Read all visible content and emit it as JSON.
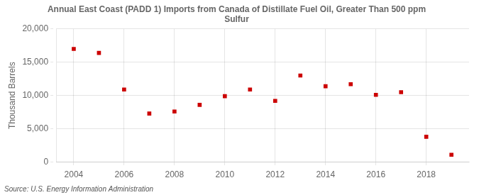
{
  "chart_data": {
    "type": "scatter",
    "title": "Annual East Coast (PADD 1) Imports from Canada of Distillate Fuel Oil, Greater Than 500 ppm\nSulfur",
    "ylabel": "Thousand Barrels",
    "annotations": [
      "Source: U.S. Energy Information Administration"
    ],
    "x": [
      2004,
      2005,
      2006,
      2007,
      2008,
      2009,
      2010,
      2011,
      2012,
      2013,
      2014,
      2015,
      2016,
      2017,
      2018,
      2019
    ],
    "values": [
      17000,
      16400,
      10900,
      7300,
      7600,
      8600,
      9900,
      10900,
      9200,
      13000,
      11400,
      11700,
      10100,
      10500,
      3800,
      1100
    ],
    "color": "#cc0000",
    "marker": "square",
    "xlim": [
      2003.3,
      2019.7
    ],
    "xticks": [
      2004,
      2006,
      2008,
      2010,
      2012,
      2014,
      2016,
      2018
    ],
    "ylim": [
      0,
      20000
    ],
    "yticks": [
      0,
      {
        "value": 5000,
        "label": "5,000"
      },
      {
        "value": 10000,
        "label": "10,000"
      },
      {
        "value": 15000,
        "label": "15,000"
      },
      {
        "value": 20000,
        "label": "20,000"
      }
    ],
    "grid": true
  }
}
